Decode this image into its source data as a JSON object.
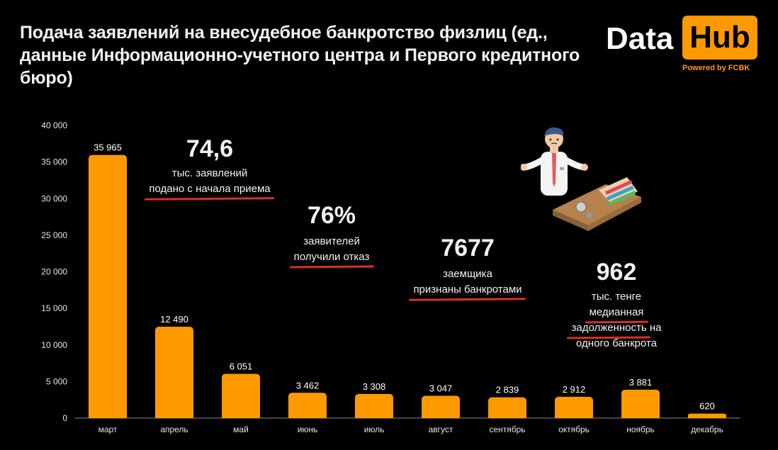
{
  "title": "Подача заявлений на внесудебное банкротство физлиц (ед., данные Информационно-учетного центра и Первого кредитного бюро)",
  "logo": {
    "word1": "Data",
    "word2": "Hub",
    "tagline": "Powered by FCBK"
  },
  "annotations": [
    {
      "big": "74,6",
      "line1": "тыс. заявлений",
      "line2": "подано с начала приема"
    },
    {
      "big": "76%",
      "line1": "заявителей",
      "line2": "получили отказ"
    },
    {
      "big": "7677",
      "line1": "заемщика",
      "line2": "признаны банкротами"
    },
    {
      "big": "962",
      "line1": "тыс. тенге",
      "line2a": "медианная",
      "line2b": "задолженность",
      "line2c": " на",
      "line3": "одного банкрота"
    }
  ],
  "colors": {
    "bar": "#ff9900",
    "background": "#000000",
    "accent_underline": "#d9302a"
  },
  "illustration": {
    "icons": [
      "man-shrugging-icon",
      "empty-wallet-icon"
    ]
  },
  "chart_data": {
    "type": "bar",
    "title": "",
    "xlabel": "",
    "ylabel": "",
    "categories": [
      "март",
      "апрель",
      "май",
      "июнь",
      "июль",
      "август",
      "сентябрь",
      "октябрь",
      "ноябрь",
      "декабрь"
    ],
    "values": [
      35965,
      12490,
      6051,
      3462,
      3308,
      3047,
      2839,
      2912,
      3881,
      620
    ],
    "value_labels": [
      "35 965",
      "12 490",
      "6 051",
      "3 462",
      "3 308",
      "3 047",
      "2 839",
      "2 912",
      "3 881",
      "620"
    ],
    "ylim": [
      0,
      40000
    ],
    "yticks": [
      0,
      5000,
      10000,
      15000,
      20000,
      25000,
      30000,
      35000,
      40000
    ],
    "ytick_labels": [
      "0",
      "5 000",
      "10 000",
      "15 000",
      "20 000",
      "25 000",
      "30 000",
      "35 000",
      "40 000"
    ],
    "grid": false,
    "legend": "none"
  }
}
